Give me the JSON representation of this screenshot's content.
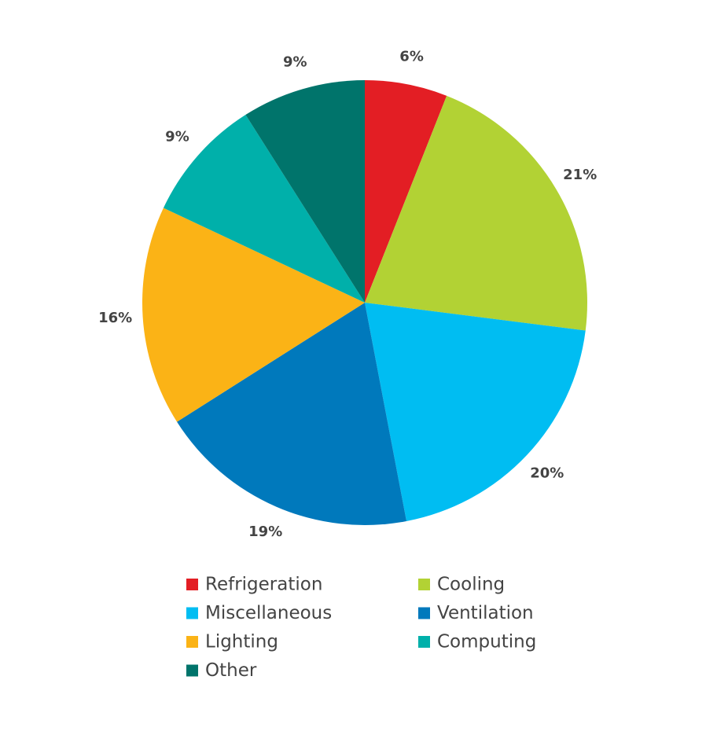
{
  "chart_data": {
    "type": "pie",
    "categories": [
      "Refrigeration",
      "Cooling",
      "Miscellaneous",
      "Ventilation",
      "Lighting",
      "Computing",
      "Other"
    ],
    "values": [
      6,
      21,
      20,
      19,
      16,
      9,
      9
    ],
    "value_labels": [
      "6%",
      "21%",
      "20%",
      "19%",
      "16%",
      "9%",
      "9%"
    ],
    "colors": [
      "#e31e24",
      "#b2d234",
      "#00bdf2",
      "#0079bc",
      "#fbb316",
      "#00b0aa",
      "#00746b"
    ]
  }
}
